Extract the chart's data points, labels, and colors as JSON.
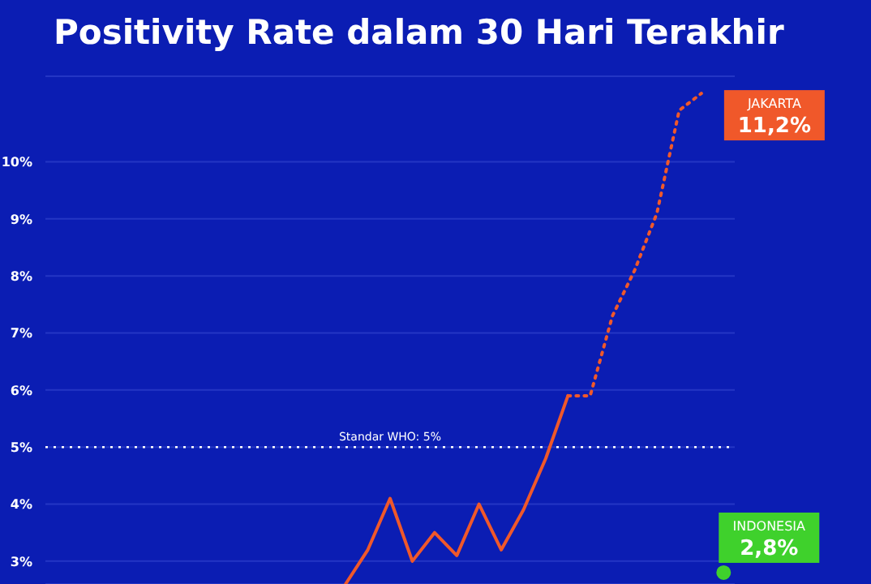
{
  "chart_data": {
    "type": "line",
    "title": "Positivity Rate dalam 30 Hari Terakhir",
    "categories": [
      null,
      null,
      null,
      null,
      null,
      null,
      null,
      null,
      null,
      null,
      null,
      null,
      null,
      null,
      null,
      null,
      null,
      null,
      null,
      null,
      null,
      null,
      null,
      null,
      null,
      null,
      null,
      null,
      null,
      null,
      null
    ],
    "series": [
      {
        "color": "#f0582a",
        "line_style": "solid",
        "values": [
          null,
          null,
          null,
          null,
          null,
          null,
          null,
          null,
          null,
          null,
          null,
          null,
          null,
          2.6,
          3.2,
          4.1,
          3.0,
          3.5,
          3.1,
          4.0,
          3.2,
          3.9,
          4.8,
          5.9,
          null,
          null,
          null,
          null,
          null,
          null,
          null
        ]
      },
      {
        "name": "JAKARTA",
        "color": "#f0582a",
        "line_style": "dotted",
        "values": [
          null,
          null,
          null,
          null,
          null,
          null,
          null,
          null,
          null,
          null,
          null,
          null,
          null,
          null,
          null,
          null,
          null,
          null,
          null,
          null,
          null,
          null,
          null,
          5.9,
          5.9,
          7.3,
          8.1,
          9.1,
          10.9,
          11.2,
          null
        ],
        "value_labels": [
          null,
          null,
          null,
          null,
          null,
          null,
          null,
          null,
          null,
          null,
          null,
          null,
          null,
          null,
          null,
          null,
          null,
          null,
          null,
          null,
          null,
          null,
          null,
          null,
          null,
          null,
          null,
          null,
          null,
          "11,2%",
          null
        ]
      },
      {
        "name": "INDONESIA",
        "color": "#3fd12c",
        "line_style": "solid",
        "marker": "circle",
        "values": [
          null,
          null,
          null,
          null,
          null,
          null,
          null,
          null,
          null,
          null,
          null,
          null,
          null,
          null,
          null,
          null,
          null,
          null,
          null,
          null,
          null,
          null,
          null,
          null,
          null,
          null,
          null,
          null,
          null,
          null,
          2.8
        ],
        "value_labels": [
          null,
          null,
          null,
          null,
          null,
          null,
          null,
          null,
          null,
          null,
          null,
          null,
          null,
          null,
          null,
          null,
          null,
          null,
          null,
          null,
          null,
          null,
          null,
          null,
          null,
          null,
          null,
          null,
          null,
          null,
          "2,8%"
        ]
      }
    ],
    "ylim": [
      2.6,
      11.5
    ],
    "yticks": [
      {
        "value": 3,
        "label": "3%"
      },
      {
        "value": 4,
        "label": "4%"
      },
      {
        "value": 5,
        "label": "5%"
      },
      {
        "value": 6,
        "label": "6%"
      },
      {
        "value": 7,
        "label": "7%"
      },
      {
        "value": 8,
        "label": "8%"
      },
      {
        "value": 9,
        "label": "9%"
      },
      {
        "value": 10,
        "label": "10%"
      }
    ],
    "grid": "y",
    "tick_labels": "y",
    "ref_lines": [
      {
        "axis": "y",
        "value": 5,
        "label": "Standar WHO: 5%",
        "color": "#ffffff",
        "line_style": "dotted"
      }
    ]
  }
}
